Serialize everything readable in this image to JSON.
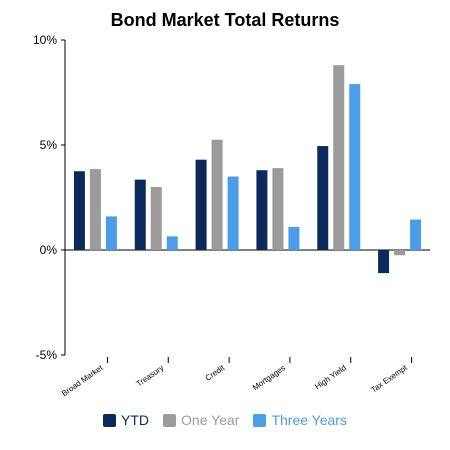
{
  "chart_data": {
    "type": "bar",
    "title": "Bond Market Total Returns",
    "categories": [
      "Broad Market",
      "Treasury",
      "Credit",
      "Mortgages",
      "High Yield",
      "Tax Exempt"
    ],
    "series": [
      {
        "name": "YTD",
        "color": "#0b2a5b",
        "values": [
          3.75,
          3.35,
          4.3,
          3.8,
          4.95,
          -1.1
        ]
      },
      {
        "name": "One Year",
        "color": "#9b9b9b",
        "values": [
          3.85,
          3.0,
          5.25,
          3.9,
          8.8,
          -0.25
        ]
      },
      {
        "name": "Three Years",
        "color": "#4a9de6",
        "values": [
          1.6,
          0.65,
          3.5,
          1.1,
          7.9,
          1.45
        ]
      }
    ],
    "ylim": [
      -5,
      10
    ],
    "yticks": [
      10,
      5,
      0,
      -5
    ],
    "ytick_labels": [
      "10%",
      "5%",
      "0%",
      "-5%"
    ],
    "legend_position": "bottom",
    "grid": false
  }
}
